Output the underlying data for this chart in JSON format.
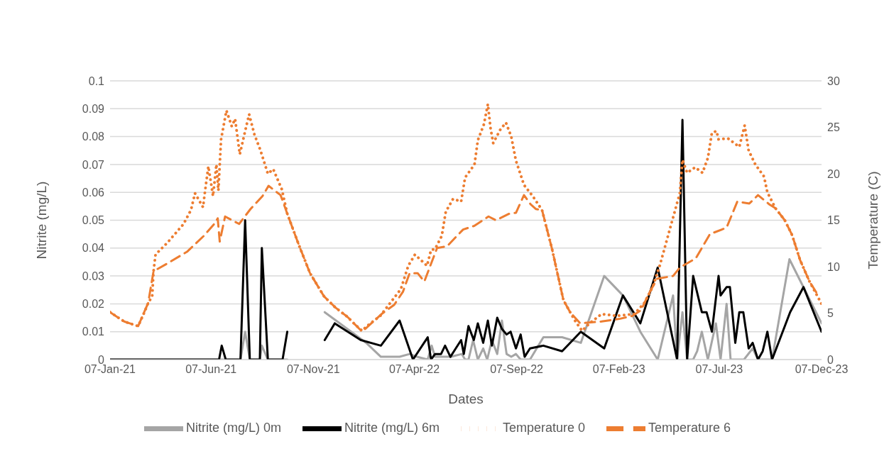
{
  "chart_data": {
    "type": "line",
    "xlabel": "Dates",
    "ylabel": "Nitrite (mg/L)",
    "y2label": "Temperature (C)",
    "xlim": [
      "2021-01-07",
      "2023-12-07"
    ],
    "xticks": [
      {
        "value": "2021-01-07",
        "label": "07-Jan-21"
      },
      {
        "value": "2021-06-07",
        "label": "07-Jun-21"
      },
      {
        "value": "2021-11-07",
        "label": "07-Nov-21"
      },
      {
        "value": "2022-04-07",
        "label": "07-Apr-22"
      },
      {
        "value": "2022-09-07",
        "label": "07-Sep-22"
      },
      {
        "value": "2023-02-07",
        "label": "07-Feb-23"
      },
      {
        "value": "2023-07-07",
        "label": "07-Jul-23"
      },
      {
        "value": "2023-12-07",
        "label": "07-Dec-23"
      }
    ],
    "ylim": [
      0,
      0.1
    ],
    "yticks": [
      0,
      0.01,
      0.02,
      0.03,
      0.04,
      0.05,
      0.06,
      0.07,
      0.08,
      0.09,
      0.1
    ],
    "y2lim": [
      0,
      30
    ],
    "y2ticks": [
      0,
      5,
      10,
      15,
      20,
      25,
      30
    ],
    "grid": "y",
    "legend": "bottom",
    "marker": "none",
    "series": [
      {
        "name": "Nitrite (mg/L) 0m",
        "color": "#a5a5a5",
        "line_style": "solid",
        "x": [
          "2021-01-07",
          "2021-06-19",
          "2021-06-23",
          "2021-06-29",
          "2021-07-21",
          "2021-07-28",
          "2021-08-04",
          "2021-08-19",
          "2021-08-22",
          "2021-08-31",
          "2021-09-22",
          "2021-09-29",
          "2021-10-20",
          "2021-11-24",
          "2022-01-25",
          "2022-02-16",
          "2022-03-16",
          "2022-03-31",
          "2022-04-11",
          "2022-04-27",
          "2022-05-03",
          "2022-05-08",
          "2022-05-23",
          "2022-06-01",
          "2022-06-17",
          "2022-06-22",
          "2022-06-27",
          "2022-07-04",
          "2022-07-11",
          "2022-07-19",
          "2022-07-25",
          "2022-08-01",
          "2022-08-09",
          "2022-08-16",
          "2022-08-23",
          "2022-08-30",
          "2022-09-06",
          "2022-09-13",
          "2022-09-27",
          "2022-10-17",
          "2022-11-14",
          "2022-12-12",
          "2023-01-16",
          "2023-02-13",
          "2023-03-11",
          "2023-04-06",
          "2023-04-29",
          "2023-05-05",
          "2023-05-13",
          "2023-05-20",
          "2023-05-29",
          "2023-06-04",
          "2023-06-11",
          "2023-06-20",
          "2023-07-02",
          "2023-07-09",
          "2023-07-18",
          "2023-07-24",
          "2023-08-13",
          "2023-08-26",
          "2023-09-03",
          "2023-09-24",
          "2023-10-20",
          "2023-12-07"
        ],
        "values": [
          0,
          0,
          0,
          0,
          0,
          0.01,
          0,
          0,
          0.005,
          0,
          0,
          0,
          null,
          0.017,
          0.006,
          0.001,
          0.001,
          0.002,
          0.001,
          0,
          0.005,
          0.001,
          0.001,
          0.001,
          0.002,
          0,
          0,
          0.007,
          0,
          0.004,
          0,
          0.007,
          0.002,
          0.014,
          0.002,
          0.001,
          0.002,
          0,
          0,
          0.008,
          0.008,
          0.006,
          0.03,
          0.023,
          0.01,
          0,
          0.023,
          0,
          0.017,
          0,
          0,
          0.003,
          0.01,
          0,
          0.013,
          0,
          0.02,
          0,
          0,
          0.004,
          0,
          0,
          0.036,
          0.013
        ]
      },
      {
        "name": "Nitrite (mg/L) 6m",
        "color": "#000000",
        "line_style": "solid",
        "x": [
          "2021-01-07",
          "2021-06-19",
          "2021-06-23",
          "2021-06-29",
          "2021-07-21",
          "2021-07-28",
          "2021-08-04",
          "2021-08-19",
          "2021-08-22",
          "2021-08-31",
          "2021-09-22",
          "2021-09-29",
          "2021-10-20",
          "2021-11-24",
          "2021-12-09",
          "2022-01-17",
          "2022-02-16",
          "2022-03-16",
          "2022-04-05",
          "2022-04-27",
          "2022-05-02",
          "2022-05-08",
          "2022-05-17",
          "2022-05-23",
          "2022-05-31",
          "2022-06-08",
          "2022-06-16",
          "2022-06-20",
          "2022-06-27",
          "2022-07-05",
          "2022-07-11",
          "2022-07-19",
          "2022-07-26",
          "2022-08-01",
          "2022-08-09",
          "2022-08-16",
          "2022-08-23",
          "2022-08-29",
          "2022-09-06",
          "2022-09-13",
          "2022-09-19",
          "2022-09-27",
          "2022-10-17",
          "2022-11-14",
          "2022-12-12",
          "2023-01-16",
          "2023-02-13",
          "2023-03-11",
          "2023-04-06",
          "2023-05-05",
          "2023-05-13",
          "2023-05-20",
          "2023-05-29",
          "2023-06-11",
          "2023-06-18",
          "2023-06-26",
          "2023-07-06",
          "2023-07-09",
          "2023-07-18",
          "2023-07-23",
          "2023-07-31",
          "2023-08-06",
          "2023-08-12",
          "2023-08-20",
          "2023-08-26",
          "2023-09-03",
          "2023-09-10",
          "2023-09-17",
          "2023-09-24",
          "2023-10-21",
          "2023-11-10",
          "2023-12-07"
        ],
        "values": [
          0,
          0,
          0.005,
          0,
          0,
          0.05,
          0,
          0,
          0.04,
          0,
          0,
          0.01,
          null,
          0.007,
          0.013,
          0.007,
          0.005,
          0.014,
          0,
          0.008,
          0,
          0.002,
          0.002,
          0.005,
          0.001,
          0.004,
          0.007,
          0.002,
          0.012,
          0.007,
          0.013,
          0.006,
          0.014,
          0.005,
          0.015,
          0.011,
          0.009,
          0.01,
          0.004,
          0.009,
          0.001,
          0.004,
          0.005,
          0.003,
          0.01,
          0.004,
          0.023,
          0.013,
          0.033,
          0,
          0.086,
          0,
          0.03,
          0.017,
          0.017,
          0.01,
          0.03,
          0.023,
          0.026,
          0.026,
          0.006,
          0.017,
          0.017,
          0.004,
          0.006,
          0,
          0.003,
          0.01,
          0,
          0.017,
          0.026,
          0.01
        ]
      },
      {
        "name": "Temperature 6",
        "color": "#ed7d31",
        "line_style": "dashed",
        "axis": "y2",
        "x": [
          "2021-01-07",
          "2021-01-28",
          "2021-02-18",
          "2021-03-05",
          "2021-03-13",
          "2021-04-04",
          "2021-05-02",
          "2021-05-27",
          "2021-06-13",
          "2021-06-17",
          "2021-06-20",
          "2021-06-28",
          "2021-07-19",
          "2021-08-05",
          "2021-08-23",
          "2021-09-01",
          "2021-09-19",
          "2021-09-29",
          "2021-10-16",
          "2021-11-02",
          "2021-11-23",
          "2021-12-10",
          "2021-12-28",
          "2022-01-19",
          "2022-02-17",
          "2022-03-08",
          "2022-03-21",
          "2022-03-31",
          "2022-04-12",
          "2022-04-22",
          "2022-05-03",
          "2022-05-11",
          "2022-05-26",
          "2022-06-19",
          "2022-07-06",
          "2022-07-27",
          "2022-08-07",
          "2022-08-27",
          "2022-09-06",
          "2022-09-18",
          "2022-09-28",
          "2022-10-06",
          "2022-10-15",
          "2022-10-30",
          "2022-11-07",
          "2022-11-16",
          "2022-11-26",
          "2022-12-11",
          "2023-01-12",
          "2023-02-09",
          "2023-02-27",
          "2023-03-12",
          "2023-03-23",
          "2023-04-05",
          "2023-04-29",
          "2023-05-09",
          "2023-06-02",
          "2023-06-23",
          "2023-07-18",
          "2023-08-03",
          "2023-08-21",
          "2023-09-03",
          "2023-09-20",
          "2023-09-29",
          "2023-10-13",
          "2023-10-24",
          "2023-11-05",
          "2023-11-19",
          "2023-12-02"
        ],
        "values": [
          5.1,
          4.1,
          3.6,
          6.1,
          9.5,
          10.4,
          11.6,
          13.3,
          14.7,
          15.2,
          12.7,
          15.4,
          14.6,
          16.2,
          17.6,
          18.7,
          17.7,
          15.7,
          12.4,
          9.3,
          6.8,
          5.6,
          4.6,
          3,
          4.9,
          5.9,
          7.3,
          9.3,
          9.3,
          8.4,
          10.5,
          12,
          12.2,
          14,
          14.4,
          15.4,
          15,
          15.7,
          15.8,
          17.7,
          16.7,
          16.2,
          16.1,
          11.9,
          9.3,
          6.4,
          5.1,
          3.9,
          4.1,
          4.4,
          4.7,
          5.3,
          7,
          8.7,
          9,
          9.9,
          10.9,
          13.5,
          14.2,
          17,
          16.8,
          17.7,
          16.7,
          16.3,
          15,
          13.4,
          10.7,
          8.4,
          6.9
        ]
      },
      {
        "name": "Temperature 0",
        "color": "#ed7d31",
        "line_style": "dotted",
        "axis": "y2",
        "x": [
          "2021-01-07",
          "2021-01-28",
          "2021-02-18",
          "2021-02-28",
          "2021-03-05",
          "2021-03-11",
          "2021-03-13",
          "2021-03-16",
          "2021-04-03",
          "2021-04-27",
          "2021-05-08",
          "2021-05-14",
          "2021-05-26",
          "2021-05-29",
          "2021-06-03",
          "2021-06-07",
          "2021-06-10",
          "2021-06-15",
          "2021-06-18",
          "2021-06-22",
          "2021-06-30",
          "2021-07-08",
          "2021-07-13",
          "2021-07-20",
          "2021-07-28",
          "2021-08-03",
          "2021-08-11",
          "2021-08-20",
          "2021-08-31",
          "2021-09-08",
          "2021-09-21",
          "2021-09-29",
          "2021-10-16",
          "2021-11-02",
          "2021-11-23",
          "2021-12-10",
          "2021-12-28",
          "2022-01-08",
          "2022-01-19",
          "2022-01-26",
          "2022-02-15",
          "2022-03-02",
          "2022-03-18",
          "2022-03-29",
          "2022-04-08",
          "2022-04-17",
          "2022-04-26",
          "2022-05-02",
          "2022-05-08",
          "2022-05-18",
          "2022-05-24",
          "2022-06-04",
          "2022-06-16",
          "2022-06-22",
          "2022-07-06",
          "2022-07-11",
          "2022-07-20",
          "2022-07-26",
          "2022-07-30",
          "2022-08-03",
          "2022-08-14",
          "2022-08-22",
          "2022-08-30",
          "2022-09-06",
          "2022-09-18",
          "2022-10-01",
          "2022-10-15",
          "2022-10-21",
          "2022-10-30",
          "2022-11-07",
          "2022-11-16",
          "2022-11-26",
          "2022-12-04",
          "2022-12-14",
          "2022-12-25",
          "2023-01-12",
          "2023-02-04",
          "2023-03-02",
          "2023-03-17",
          "2023-03-30",
          "2023-04-09",
          "2023-04-19",
          "2023-04-29",
          "2023-05-09",
          "2023-05-13",
          "2023-05-20",
          "2023-06-01",
          "2023-06-12",
          "2023-06-20",
          "2023-06-26",
          "2023-07-03",
          "2023-07-06",
          "2023-07-20",
          "2023-08-06",
          "2023-08-14",
          "2023-08-20",
          "2023-08-30",
          "2023-09-12",
          "2023-09-17",
          "2023-09-29",
          "2023-10-13",
          "2023-10-24",
          "2023-11-05",
          "2023-11-19",
          "2023-12-01",
          "2023-12-07"
        ],
        "values": [
          5.1,
          4.1,
          3.6,
          5.2,
          6.1,
          6.8,
          9.5,
          11.3,
          12.6,
          14.6,
          16.1,
          17.9,
          16.4,
          18.1,
          20.8,
          19,
          17.6,
          21,
          18.2,
          23.7,
          26.8,
          25.1,
          25.9,
          22.1,
          24.6,
          26.4,
          24.2,
          22.5,
          20,
          20.5,
          18.3,
          15.7,
          12.4,
          9.3,
          6.8,
          5.6,
          4.6,
          3.8,
          3.1,
          3.6,
          4.7,
          6.1,
          7.6,
          10.1,
          11.3,
          10.7,
          10.1,
          11.8,
          11.9,
          13.3,
          15.9,
          17.3,
          17,
          19.6,
          21,
          23.6,
          25.3,
          27.5,
          24.9,
          23.3,
          24.8,
          25.5,
          24,
          21.4,
          18.8,
          17.6,
          16.1,
          14.4,
          11.9,
          9.3,
          6.4,
          5.1,
          4.1,
          3.1,
          3.9,
          4.9,
          4.7,
          4.9,
          6.1,
          7.9,
          10.1,
          12.7,
          15.3,
          17.9,
          21.5,
          20.1,
          20.7,
          20.1,
          21.7,
          24.4,
          24.6,
          23.7,
          23.8,
          22.9,
          25.2,
          22.5,
          21,
          19.7,
          18,
          16.3,
          15,
          13.4,
          10.7,
          8.4,
          6.8,
          6
        ]
      }
    ]
  }
}
